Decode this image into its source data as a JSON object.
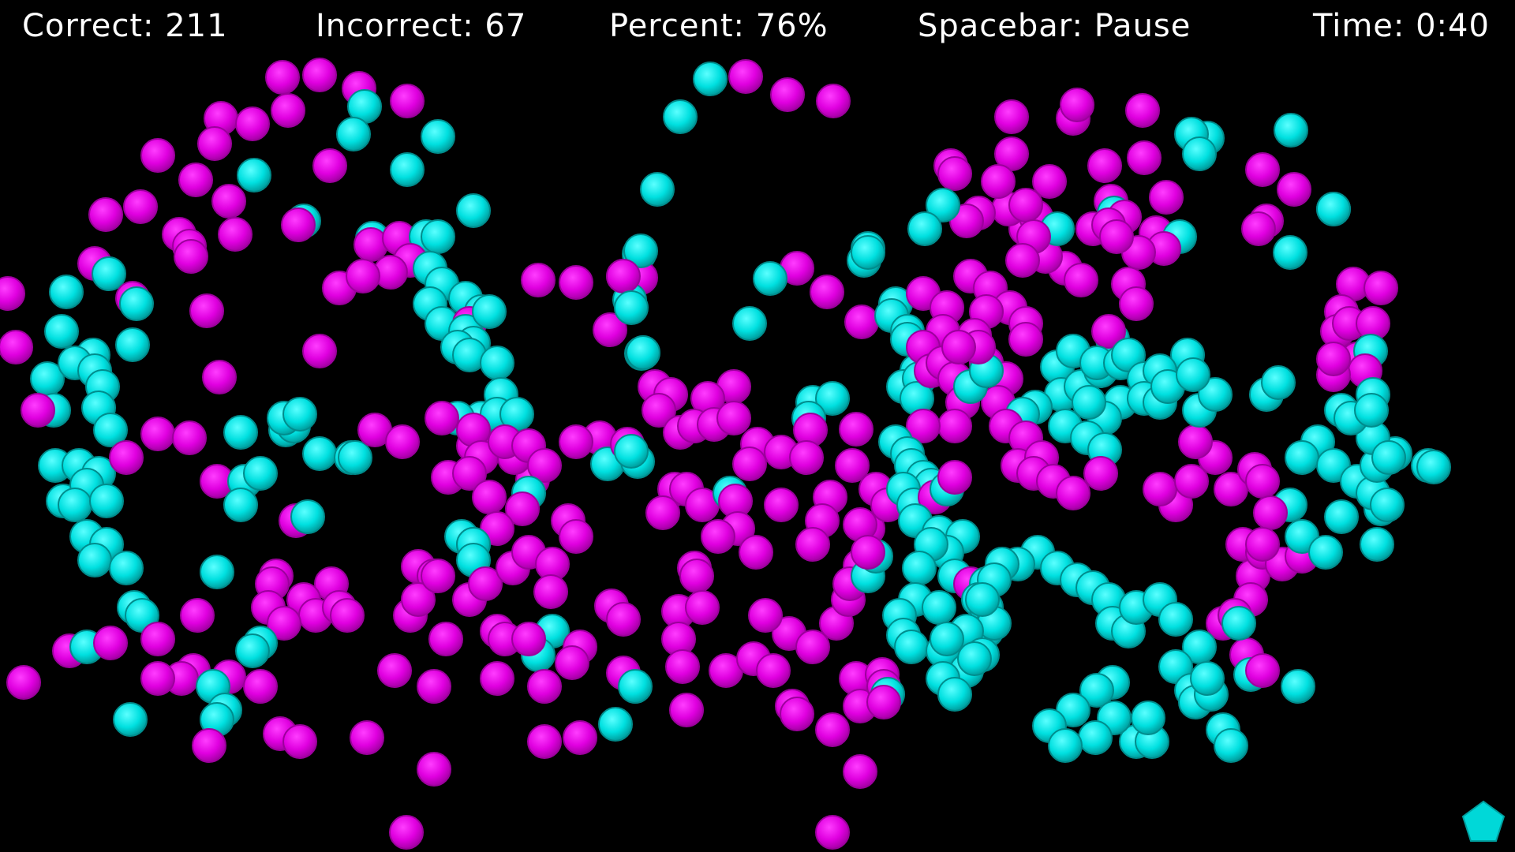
{
  "hud": {
    "correct": "Correct: 211",
    "incorrect": "Incorrect: 67",
    "percent": "Percent: 76%",
    "pause_hint": "Spacebar: Pause",
    "time": "Time: 0:40"
  },
  "colors": {
    "background": "#000000",
    "magenta_ball": "#e600e6",
    "cyan_ball": "#00e0e0",
    "hud_text": "#ffffff"
  },
  "icons": {
    "corner_shape": "pentagon-icon"
  }
}
